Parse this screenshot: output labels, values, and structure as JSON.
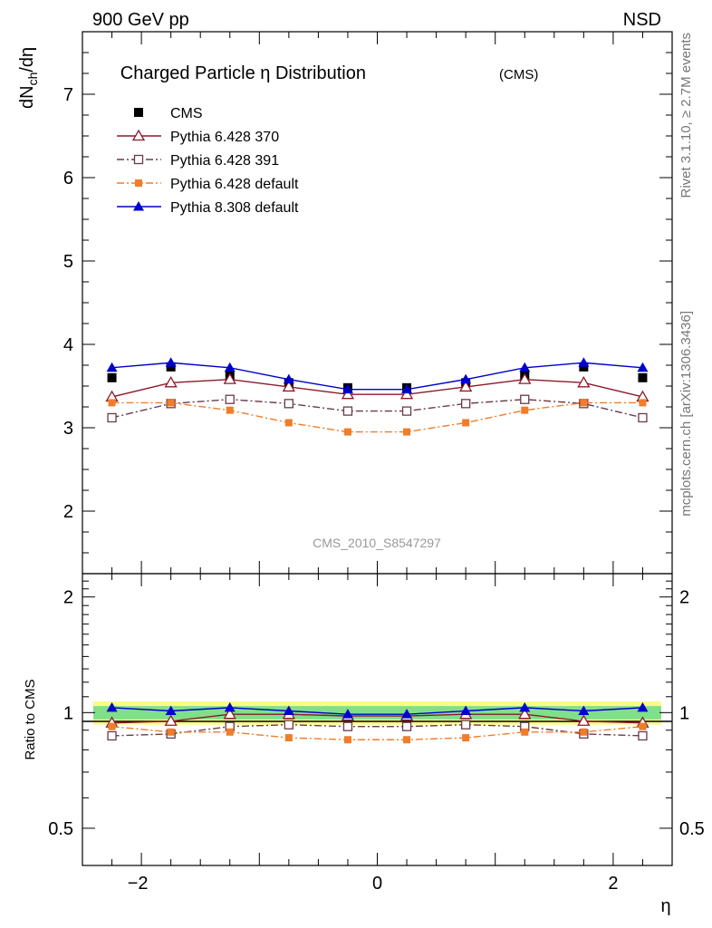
{
  "header": {
    "energy_label": "900 GeV pp",
    "process_label": "NSD",
    "rivet_label": "Rivet 3.1.10, ≥ 2.7M events",
    "mcplots_label": "mcplots.cern.ch [arXiv:1306.3436]",
    "analysis_id": "CMS_2010_S8547297"
  },
  "chart_data": [
    {
      "type": "line",
      "title": "Charged Particle η Distribution",
      "title_suffix": "(CMS)",
      "ylabel": "dN_ch/dη",
      "xlim": [
        -2.5,
        2.5
      ],
      "ylim": [
        1.25,
        7.75
      ],
      "yticks": [
        2,
        3,
        4,
        5,
        6,
        7
      ],
      "x": [
        -2.25,
        -1.75,
        -1.25,
        -0.75,
        -0.25,
        0.25,
        0.75,
        1.25,
        1.75,
        2.25
      ],
      "series": [
        {
          "name": "CMS",
          "color": "#000000",
          "marker": "filled-square",
          "line": "none",
          "values": [
            3.6,
            3.73,
            3.62,
            3.54,
            3.48,
            3.48,
            3.54,
            3.62,
            3.73,
            3.6
          ]
        },
        {
          "name": "Pythia 6.428 370",
          "color": "#8b1a2b",
          "marker": "open-triangle",
          "line": "solid",
          "values": [
            3.37,
            3.54,
            3.58,
            3.49,
            3.4,
            3.4,
            3.49,
            3.58,
            3.54,
            3.37
          ]
        },
        {
          "name": "Pythia 6.428 391",
          "color": "#6b3a4a",
          "marker": "open-square",
          "line": "dash-dot",
          "values": [
            3.12,
            3.29,
            3.34,
            3.29,
            3.2,
            3.2,
            3.29,
            3.34,
            3.29,
            3.12
          ]
        },
        {
          "name": "Pythia 6.428 default",
          "color": "#f07d2a",
          "marker": "filled-square-small",
          "line": "dash-dot",
          "values": [
            3.3,
            3.3,
            3.21,
            3.06,
            2.95,
            2.95,
            3.06,
            3.21,
            3.3,
            3.3
          ]
        },
        {
          "name": "Pythia 8.308 default",
          "color": "#0000cc",
          "marker": "filled-triangle",
          "line": "solid",
          "values": [
            3.72,
            3.78,
            3.72,
            3.58,
            3.46,
            3.46,
            3.58,
            3.72,
            3.78,
            3.72
          ]
        }
      ],
      "legend_position": "top-left"
    },
    {
      "type": "line",
      "ylabel": "Ratio to CMS",
      "xlabel": "η",
      "scale": "log",
      "xlim": [
        -2.5,
        2.5
      ],
      "ylim": [
        0.4,
        2.3
      ],
      "yticks": [
        0.5,
        1,
        2
      ],
      "xticks": [
        -2,
        0,
        2
      ],
      "x": [
        -2.25,
        -1.75,
        -1.25,
        -0.75,
        -0.25,
        0.25,
        0.75,
        1.25,
        1.75,
        2.25
      ],
      "bands": {
        "inner": [
          0.96,
          1.04
        ],
        "outer": [
          0.93,
          1.07
        ],
        "inner_color": "#7fe08a",
        "outer_color": "#fbfb8a"
      },
      "series": [
        {
          "name": "Pythia 6.428 370",
          "color": "#8b1a2b",
          "marker": "open-triangle",
          "line": "solid",
          "values": [
            0.94,
            0.95,
            0.99,
            0.99,
            0.98,
            0.98,
            0.99,
            0.99,
            0.95,
            0.94
          ]
        },
        {
          "name": "Pythia 6.428 391",
          "color": "#6b3a4a",
          "marker": "open-square",
          "line": "dash-dot",
          "values": [
            0.87,
            0.88,
            0.92,
            0.93,
            0.92,
            0.92,
            0.93,
            0.92,
            0.88,
            0.87
          ]
        },
        {
          "name": "Pythia 6.428 default",
          "color": "#f07d2a",
          "marker": "filled-square-small",
          "line": "dash-dot",
          "values": [
            0.92,
            0.89,
            0.89,
            0.86,
            0.85,
            0.85,
            0.86,
            0.89,
            0.89,
            0.92
          ]
        },
        {
          "name": "Pythia 8.308 default",
          "color": "#0000cc",
          "marker": "filled-triangle",
          "line": "solid",
          "values": [
            1.03,
            1.01,
            1.03,
            1.01,
            0.99,
            0.99,
            1.01,
            1.03,
            1.01,
            1.03
          ]
        }
      ]
    }
  ]
}
